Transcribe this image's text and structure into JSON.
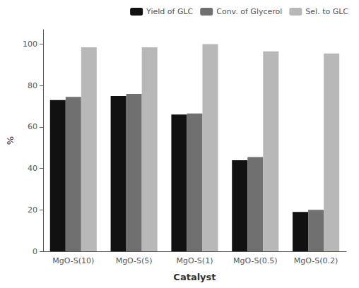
{
  "chart_data": {
    "type": "bar",
    "categories": [
      "MgO-S(10)",
      "MgO-S(5)",
      "MgO-S(1)",
      "MgO-S(0.5)",
      "MgO-S(0.2)"
    ],
    "series": [
      {
        "name": "Yield of GLC",
        "color": "#111111",
        "values": [
          73,
          75,
          66,
          44,
          19
        ]
      },
      {
        "name": "Conv. of Glycerol",
        "color": "#707070",
        "values": [
          74.5,
          76,
          66.5,
          45.5,
          20
        ]
      },
      {
        "name": "Sel. to GLC",
        "color": "#b8b8b8",
        "values": [
          98.5,
          98.5,
          100,
          96.5,
          95.5
        ]
      }
    ],
    "xlabel": "Catalyst",
    "ylabel": "%",
    "ylim": [
      0,
      107
    ],
    "yticks": [
      0,
      20,
      40,
      60,
      80,
      100
    ],
    "grid": false,
    "legend": "upper right"
  }
}
